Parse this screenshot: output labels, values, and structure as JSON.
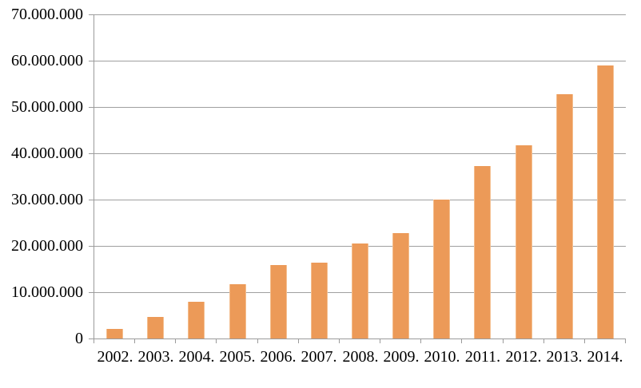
{
  "chart_data": {
    "type": "bar",
    "title": "",
    "xlabel": "",
    "ylabel": "",
    "categories": [
      "2002.",
      "2003.",
      "2004.",
      "2005.",
      "2006.",
      "2007.",
      "2008.",
      "2009.",
      "2010.",
      "2011.",
      "2012.",
      "2013.",
      "2014."
    ],
    "values": [
      2000000,
      4600000,
      7900000,
      11700000,
      15900000,
      16400000,
      20600000,
      22800000,
      30000000,
      37300000,
      41800000,
      52800000,
      59000000
    ],
    "ylim": [
      0,
      70000000
    ],
    "ytick_step": 10000000,
    "ytick_labels": [
      "0",
      "10.000.000",
      "20.000.000",
      "30.000.000",
      "40.000.000",
      "50.000.000",
      "60.000.000",
      "70.000.000"
    ],
    "grid": true,
    "legend_position": "none",
    "colors": {
      "bar": "#EC9A58",
      "bar_edge_highlight": "#F4BE8E",
      "gridline": "#A0A0A0",
      "axis": "#9B9B9B",
      "tick": "#9B9B9B",
      "text": "#000000",
      "background": "#FFFFFF"
    }
  }
}
